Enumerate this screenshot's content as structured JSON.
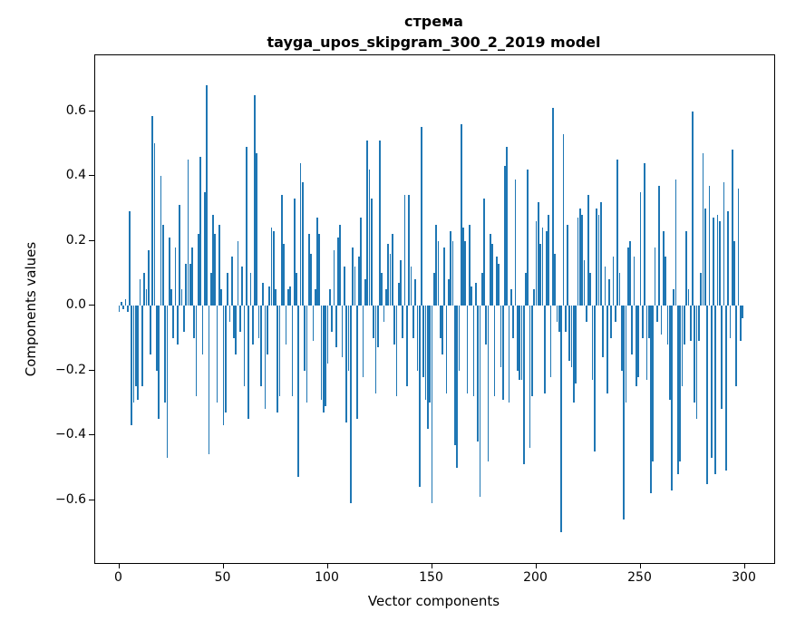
{
  "title": {
    "line1": "стрема",
    "line2": "tayga_upos_skipgram_300_2_2019 model"
  },
  "axes": {
    "xlabel": "Vector components",
    "ylabel": "Components values"
  },
  "chart_data": {
    "type": "bar",
    "title": "стрема — tayga_upos_skipgram_300_2_2019 model",
    "xlabel": "Vector components",
    "ylabel": "Components values",
    "bar_color": "#1f77b4",
    "n_components": 300,
    "x_tick_values": [
      0,
      50,
      100,
      150,
      200,
      250,
      300
    ],
    "y_tick_values": [
      0.6,
      0.4,
      0.2,
      0.0,
      -0.2,
      -0.4,
      -0.6
    ],
    "y_tick_labels": [
      "0.6",
      "0.4",
      "0.2",
      "0.0",
      "−0.2",
      "−0.4",
      "−0.6"
    ],
    "xlim": [
      -12,
      314
    ],
    "ylim": [
      -0.79,
      0.775
    ],
    "grid": false,
    "legend": "none",
    "values": [
      -0.02,
      0.01,
      -0.01,
      0.02,
      -0.02,
      0.29,
      -0.37,
      -0.3,
      -0.25,
      -0.29,
      0.08,
      -0.25,
      0.1,
      0.05,
      0.17,
      -0.15,
      0.585,
      0.5,
      -0.2,
      -0.35,
      0.4,
      0.25,
      -0.3,
      -0.47,
      0.21,
      0.05,
      -0.1,
      0.18,
      -0.12,
      0.31,
      0.05,
      -0.08,
      0.13,
      0.45,
      0.13,
      0.18,
      -0.1,
      -0.28,
      0.22,
      0.46,
      -0.15,
      0.35,
      0.68,
      -0.46,
      0.1,
      0.28,
      0.22,
      -0.3,
      0.25,
      0.05,
      -0.37,
      -0.33,
      0.1,
      -0.05,
      0.15,
      -0.1,
      -0.15,
      0.2,
      -0.08,
      0.12,
      -0.25,
      0.49,
      -0.35,
      0.1,
      -0.12,
      0.65,
      0.47,
      -0.1,
      -0.25,
      0.07,
      -0.32,
      -0.15,
      0.06,
      0.24,
      0.23,
      0.05,
      -0.33,
      -0.28,
      0.34,
      0.19,
      -0.12,
      0.05,
      0.06,
      -0.28,
      0.33,
      0.1,
      -0.53,
      0.44,
      0.38,
      -0.2,
      -0.3,
      0.22,
      0.16,
      -0.11,
      0.05,
      0.27,
      0.22,
      -0.29,
      -0.33,
      -0.31,
      -0.18,
      0.05,
      -0.08,
      0.17,
      -0.13,
      0.21,
      0.25,
      -0.16,
      0.12,
      -0.36,
      -0.2,
      -0.61,
      0.18,
      0.12,
      -0.35,
      0.15,
      0.27,
      -0.22,
      0.08,
      0.51,
      0.42,
      0.33,
      -0.1,
      -0.27,
      -0.13,
      0.51,
      0.1,
      -0.05,
      0.05,
      0.19,
      0.16,
      0.22,
      -0.12,
      -0.28,
      0.07,
      0.14,
      -0.1,
      0.34,
      -0.25,
      0.34,
      0.12,
      -0.1,
      0.08,
      -0.2,
      -0.56,
      0.55,
      -0.22,
      -0.29,
      -0.38,
      -0.3,
      -0.61,
      0.1,
      0.25,
      0.2,
      -0.1,
      -0.15,
      0.18,
      -0.27,
      0.08,
      0.23,
      0.2,
      -0.43,
      -0.5,
      -0.2,
      0.56,
      0.24,
      0.2,
      -0.27,
      0.25,
      0.06,
      -0.28,
      0.07,
      -0.42,
      -0.59,
      0.1,
      0.33,
      -0.12,
      -0.48,
      0.22,
      0.19,
      -0.28,
      0.15,
      0.13,
      -0.19,
      -0.29,
      0.43,
      0.49,
      -0.3,
      0.05,
      -0.1,
      0.39,
      -0.2,
      -0.23,
      -0.23,
      -0.49,
      0.1,
      0.42,
      -0.44,
      -0.28,
      0.05,
      0.26,
      0.32,
      0.19,
      0.24,
      -0.27,
      0.23,
      0.28,
      -0.22,
      0.61,
      0.16,
      -0.05,
      -0.08,
      -0.7,
      0.53,
      -0.08,
      0.25,
      -0.17,
      -0.19,
      -0.3,
      -0.24,
      0.27,
      0.3,
      0.28,
      0.14,
      -0.05,
      0.34,
      0.1,
      -0.23,
      -0.45,
      0.3,
      0.28,
      0.32,
      -0.16,
      0.12,
      -0.27,
      0.08,
      -0.1,
      0.15,
      -0.05,
      0.45,
      0.1,
      -0.2,
      -0.66,
      -0.3,
      0.18,
      0.2,
      -0.15,
      0.15,
      -0.25,
      -0.22,
      0.35,
      -0.1,
      0.44,
      -0.23,
      -0.1,
      -0.58,
      -0.48,
      0.18,
      -0.05,
      0.37,
      -0.09,
      0.23,
      0.15,
      -0.12,
      -0.29,
      -0.57,
      0.05,
      0.39,
      -0.52,
      -0.48,
      -0.25,
      -0.12,
      0.23,
      0.05,
      -0.11,
      0.6,
      -0.3,
      -0.35,
      -0.11,
      0.1,
      0.47,
      0.3,
      -0.55,
      0.37,
      -0.47,
      0.27,
      -0.52,
      0.28,
      0.26,
      -0.32,
      0.38,
      -0.51,
      0.29,
      -0.1,
      0.48,
      0.2,
      -0.25,
      0.36,
      -0.11,
      -0.04
    ]
  }
}
